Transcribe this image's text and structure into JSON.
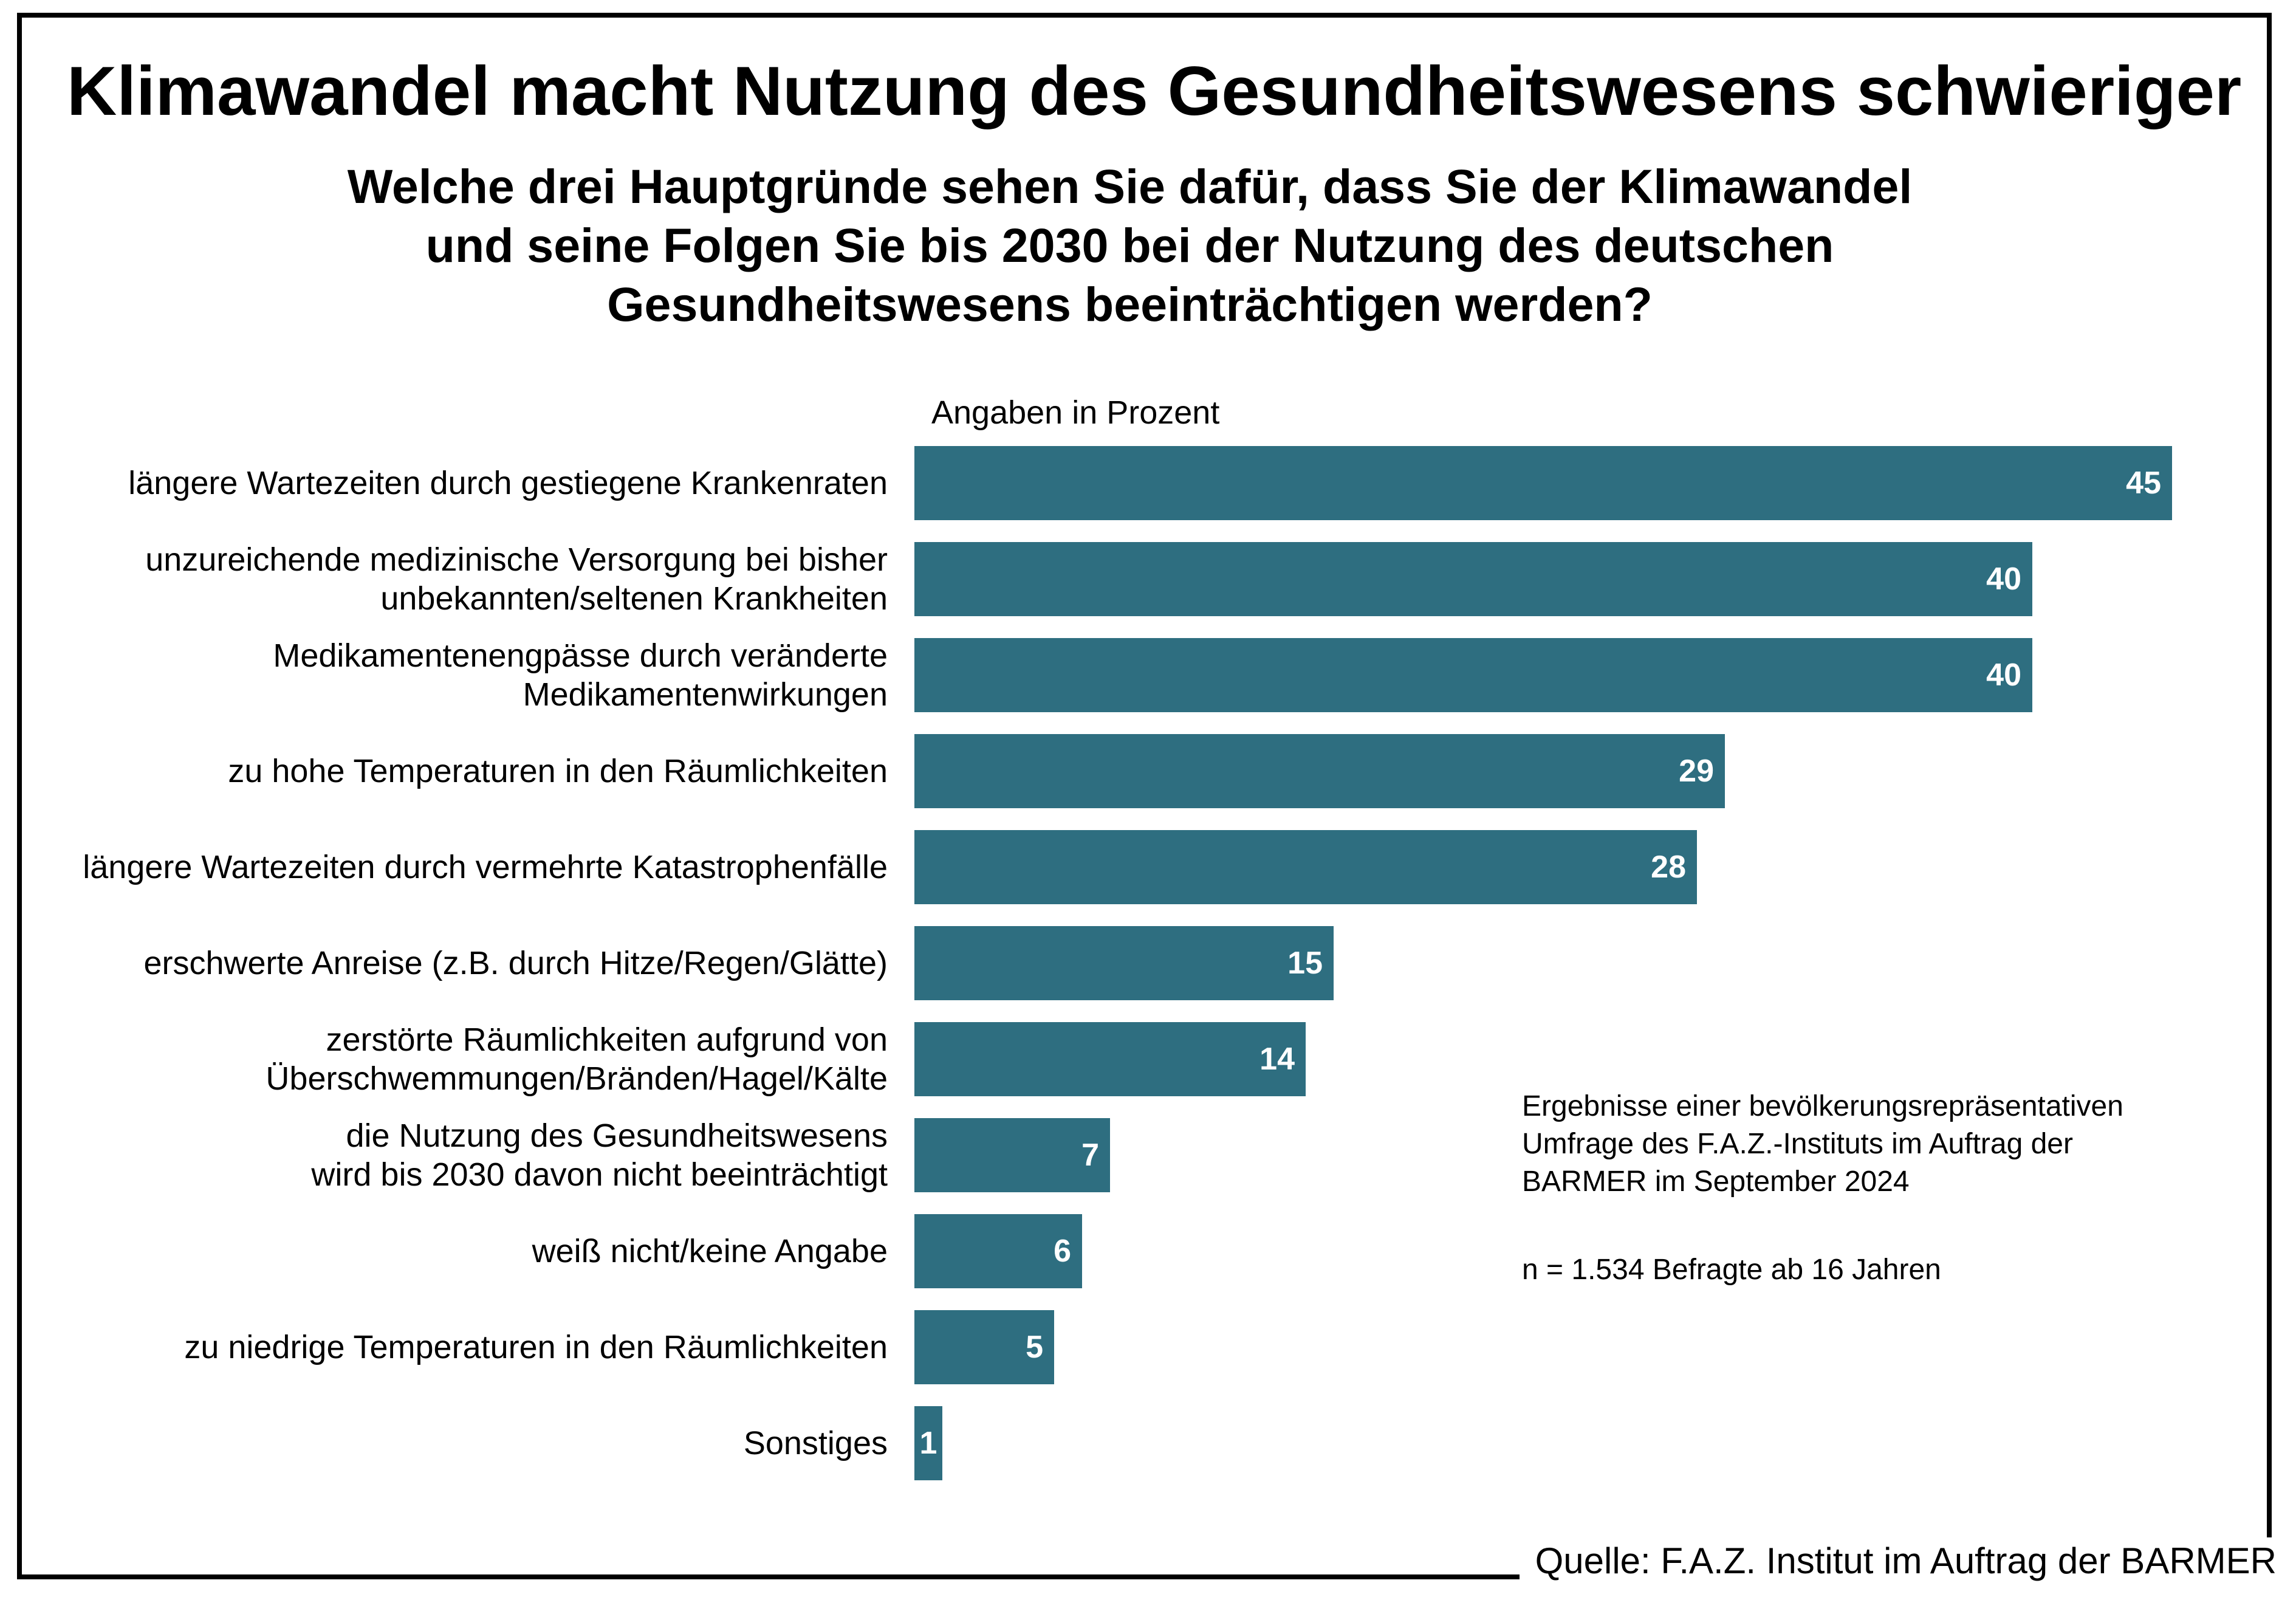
{
  "page": {
    "title": "Klimawandel macht Nutzung des Gesundheitswesens schwieriger",
    "subtitle_lines": [
      "Welche drei Hauptgründe sehen Sie dafür, dass Sie der Klimawandel",
      "und seine Folgen Sie bis 2030 bei der Nutzung des deutschen",
      "Gesundheitswesens beeinträchtigen werden?"
    ],
    "units_note": "Angaben in Prozent",
    "annotation_lines": [
      "Ergebnisse einer bevölkerungsrepräsentativen",
      "Umfrage des F.A.Z.-Instituts im Auftrag der",
      "BARMER im September 2024"
    ],
    "sample_note": "n = 1.534 Befragte ab 16 Jahren",
    "source": "Quelle: F.A.Z. Institut im Auftrag der BARMER"
  },
  "colors": {
    "bar": "#2E6E80",
    "value_text": "#FFFFFF",
    "text": "#000000",
    "frame": "#000000",
    "background": "#FFFFFF"
  },
  "chart_data": {
    "type": "bar",
    "orientation": "horizontal",
    "title": "Klimawandel macht Nutzung des Gesundheitswesens schwieriger",
    "subtitle": "Welche drei Hauptgründe sehen Sie dafür, dass Sie der Klimawandel und seine Folgen Sie bis 2030 bei der Nutzung des deutschen Gesundheitswesens beeinträchtigen werden?",
    "xlabel": "",
    "ylabel": "",
    "value_unit": "Prozent",
    "xlim": [
      0,
      48
    ],
    "grid": false,
    "legend": null,
    "categories": [
      "längere Wartezeiten durch gestiegene Krankenraten",
      "unzureichende medizinische Versorgung bei bisher unbekannten/seltenen Krankheiten",
      "Medikamentenengpässe durch veränderte Medikamentenwirkungen",
      "zu hohe Temperaturen in den Räumlichkeiten",
      "längere Wartezeiten durch vermehrte Katastrophenfälle",
      "erschwerte Anreise (z.B. durch Hitze/Regen/Glätte)",
      "zerstörte Räumlichkeiten aufgrund von Überschwemmungen/Bränden/Hagel/Kälte",
      "die Nutzung des Gesundheitswesens wird bis 2030 davon nicht beeinträchtigt",
      "weiß nicht/keine Angabe",
      "zu niedrige Temperaturen in den Räumlichkeiten",
      "Sonstiges"
    ],
    "category_lines": [
      [
        "längere Wartezeiten durch gestiegene Krankenraten"
      ],
      [
        "unzureichende medizinische Versorgung bei bisher",
        "unbekannten/seltenen Krankheiten"
      ],
      [
        "Medikamentenengpässe durch veränderte",
        "Medikamentenwirkungen"
      ],
      [
        "zu hohe Temperaturen in den Räumlichkeiten"
      ],
      [
        "längere Wartezeiten durch vermehrte Katastrophenfälle"
      ],
      [
        "erschwerte Anreise (z.B. durch Hitze/Regen/Glätte)"
      ],
      [
        "zerstörte Räumlichkeiten aufgrund von",
        "Überschwemmungen/Bränden/Hagel/Kälte"
      ],
      [
        "die Nutzung des Gesundheitswesens",
        "wird bis 2030 davon nicht beeinträchtigt"
      ],
      [
        "weiß nicht/keine Angabe"
      ],
      [
        "zu niedrige Temperaturen in den Räumlichkeiten"
      ],
      [
        "Sonstiges"
      ]
    ],
    "values": [
      45,
      40,
      40,
      29,
      28,
      15,
      14,
      7,
      6,
      5,
      1
    ]
  }
}
